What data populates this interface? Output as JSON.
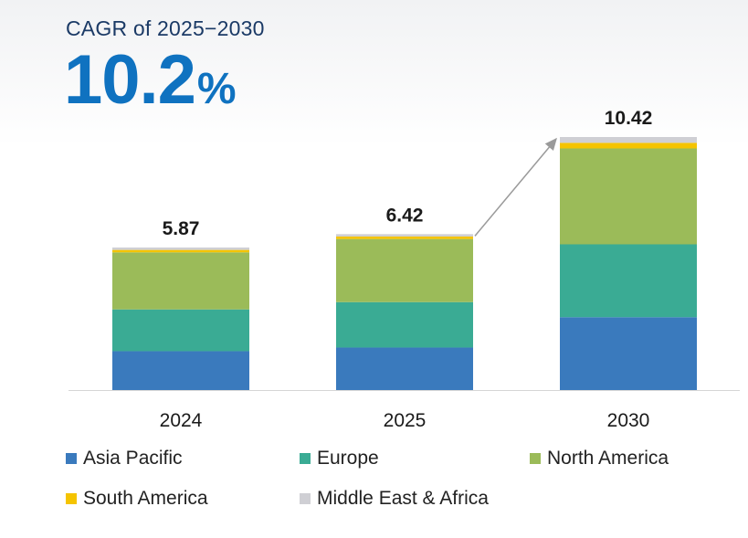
{
  "header": {
    "cagr_label": "CAGR of 2025−2030",
    "cagr_number": "10.2",
    "cagr_unit": "%"
  },
  "chart_data": {
    "type": "bar",
    "stacked": true,
    "title": "CAGR of 2025−2030",
    "categories": [
      "2024",
      "2025",
      "2030"
    ],
    "totals": [
      5.87,
      6.42,
      10.42
    ],
    "total_labels": [
      "5.87",
      "6.42",
      "10.42"
    ],
    "series": [
      {
        "name": "Asia Pacific",
        "color": "#3a7abd",
        "values": [
          1.6,
          1.75,
          3.0
        ]
      },
      {
        "name": "Europe",
        "color": "#3aab94",
        "values": [
          1.72,
          1.87,
          3.0
        ]
      },
      {
        "name": "North America",
        "color": "#9bbb59",
        "values": [
          2.35,
          2.6,
          3.95
        ]
      },
      {
        "name": "South America",
        "color": "#f5c400",
        "values": [
          0.1,
          0.1,
          0.23
        ]
      },
      {
        "name": "Middle East & Africa",
        "color": "#cfcfd4",
        "values": [
          0.1,
          0.1,
          0.24
        ]
      }
    ],
    "ylim": [
      0,
      10.42
    ],
    "grid": false,
    "legend_position": "bottom",
    "annotation": "arrow from 2025 bar to 2030 bar"
  }
}
